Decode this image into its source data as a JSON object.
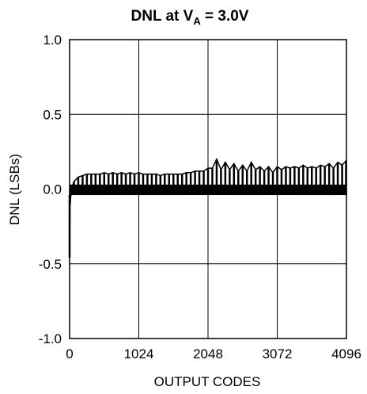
{
  "chart_data": {
    "type": "line",
    "title": {
      "prefix": "DNL at V",
      "subscript": "A",
      "suffix": " = 3.0V"
    },
    "xlabel": "OUTPUT CODES",
    "ylabel": "DNL (LSBs)",
    "xlim": [
      0,
      4096
    ],
    "ylim": [
      -1.0,
      1.0
    ],
    "x_ticks": [
      0,
      1024,
      2048,
      3072,
      4096
    ],
    "x_tick_labels": [
      "0",
      "1024",
      "2048",
      "3072",
      "4096"
    ],
    "y_ticks": [
      1.0,
      0.5,
      0.0,
      -0.5,
      -1.0
    ],
    "y_tick_labels": [
      "1.0",
      "0.5",
      "0.0",
      "-0.5",
      "-1.0"
    ],
    "grid": true,
    "series": [
      {
        "color": "#000000",
        "noise_band": [
          -0.04,
          0.03
        ],
        "points": [
          [
            0,
            -0.46
          ],
          [
            6,
            -0.1
          ],
          [
            20,
            -0.04
          ],
          [
            40,
            0.02
          ],
          [
            64,
            0.05
          ],
          [
            128,
            0.08
          ],
          [
            192,
            0.09
          ],
          [
            256,
            0.1
          ],
          [
            320,
            0.1
          ],
          [
            384,
            0.1
          ],
          [
            448,
            0.1
          ],
          [
            512,
            0.11
          ],
          [
            576,
            0.1
          ],
          [
            640,
            0.11
          ],
          [
            704,
            0.1
          ],
          [
            768,
            0.11
          ],
          [
            832,
            0.1
          ],
          [
            896,
            0.11
          ],
          [
            960,
            0.1
          ],
          [
            1024,
            0.11
          ],
          [
            1088,
            0.1
          ],
          [
            1152,
            0.1
          ],
          [
            1216,
            0.1
          ],
          [
            1280,
            0.1
          ],
          [
            1344,
            0.09
          ],
          [
            1408,
            0.1
          ],
          [
            1472,
            0.1
          ],
          [
            1536,
            0.1
          ],
          [
            1600,
            0.1
          ],
          [
            1664,
            0.1
          ],
          [
            1728,
            0.11
          ],
          [
            1792,
            0.11
          ],
          [
            1856,
            0.12
          ],
          [
            1920,
            0.12
          ],
          [
            1984,
            0.12
          ],
          [
            2048,
            0.14
          ],
          [
            2112,
            0.14
          ],
          [
            2176,
            0.2
          ],
          [
            2240,
            0.13
          ],
          [
            2304,
            0.18
          ],
          [
            2368,
            0.13
          ],
          [
            2432,
            0.17
          ],
          [
            2496,
            0.12
          ],
          [
            2560,
            0.16
          ],
          [
            2624,
            0.12
          ],
          [
            2688,
            0.18
          ],
          [
            2752,
            0.13
          ],
          [
            2816,
            0.15
          ],
          [
            2880,
            0.12
          ],
          [
            2944,
            0.15
          ],
          [
            3008,
            0.11
          ],
          [
            3072,
            0.15
          ],
          [
            3136,
            0.13
          ],
          [
            3200,
            0.15
          ],
          [
            3264,
            0.14
          ],
          [
            3328,
            0.15
          ],
          [
            3392,
            0.14
          ],
          [
            3456,
            0.16
          ],
          [
            3520,
            0.14
          ],
          [
            3584,
            0.15
          ],
          [
            3648,
            0.14
          ],
          [
            3712,
            0.16
          ],
          [
            3776,
            0.15
          ],
          [
            3840,
            0.17
          ],
          [
            3904,
            0.14
          ],
          [
            3968,
            0.18
          ],
          [
            4032,
            0.16
          ],
          [
            4090,
            0.19
          ]
        ]
      }
    ]
  }
}
